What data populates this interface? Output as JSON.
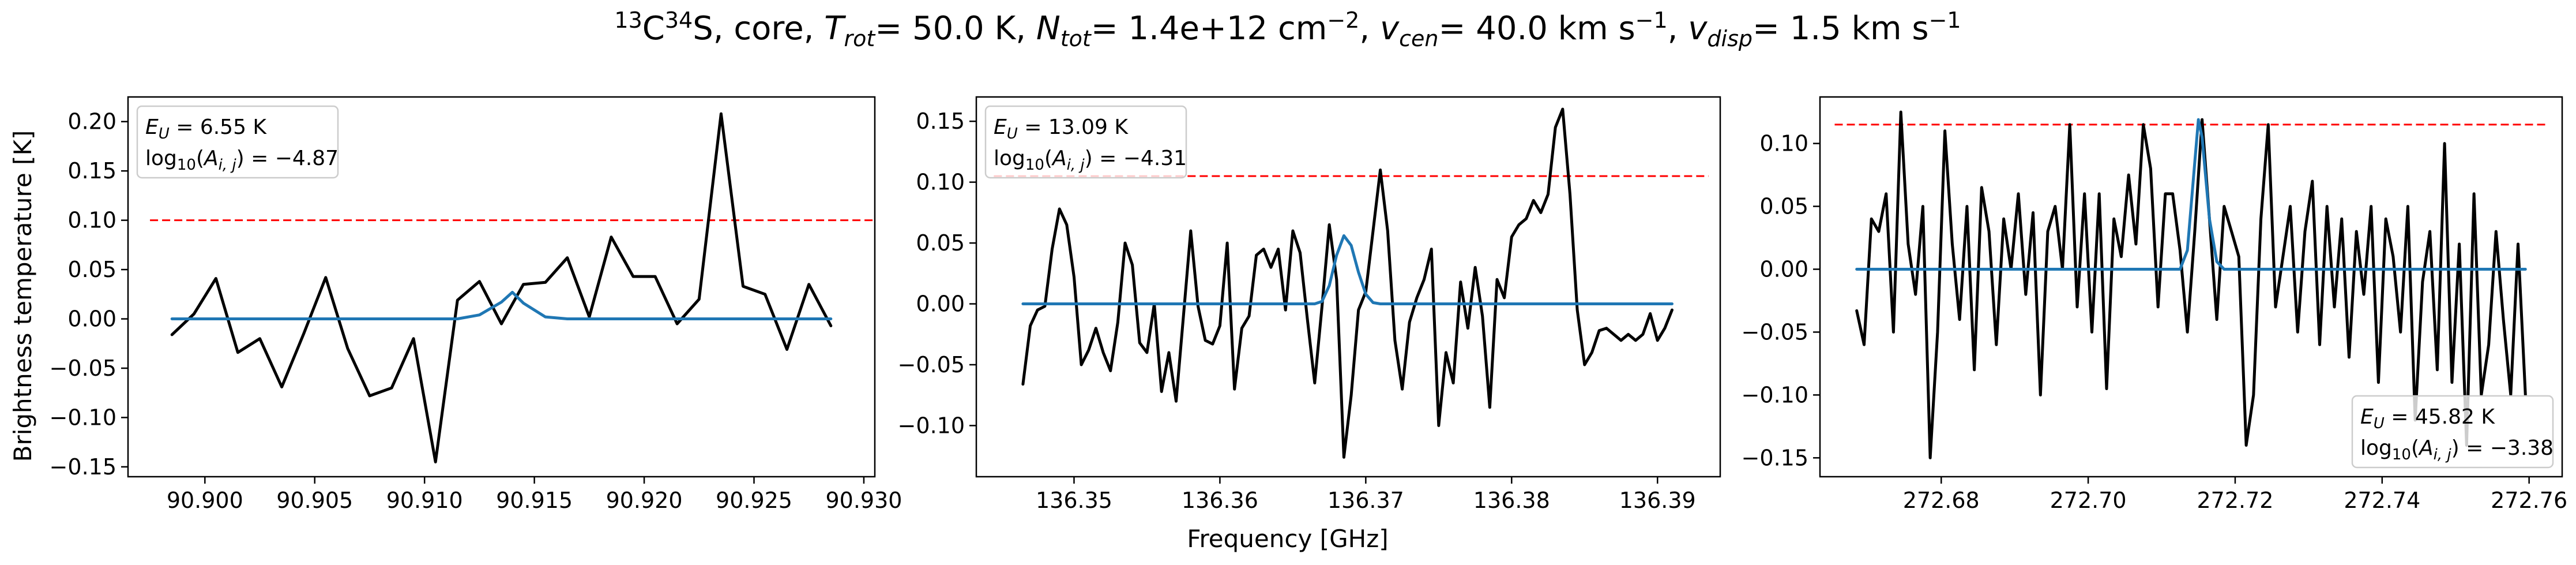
{
  "figure": {
    "title": {
      "iso_mass_1": "13",
      "elem_1": "C",
      "iso_mass_2": "34",
      "elem_2": "S",
      "source": ", core, ",
      "trot_symbol": "T",
      "trot_sub": "rot",
      "trot_value": "= 50.0 K, ",
      "ntot_symbol": "N",
      "ntot_sub": "tot",
      "ntot_value": "= 1.4e+12 cm",
      "ntot_exp": "−2",
      "vcen_symbol": "v",
      "vcen_sub": "cen",
      "vcen_value": "= 40.0 km s",
      "vcen_exp": "−1",
      "vdisp_symbol": "v",
      "vdisp_sub": "disp",
      "vdisp_value": "= 1.5 km s",
      "vdisp_exp": "−1"
    },
    "xlabel": "Frequency [GHz]",
    "ylabel": "Brightness temperature [K]"
  },
  "chart_data": [
    {
      "type": "line",
      "xlim": [
        90.8965,
        90.9305
      ],
      "ylim": [
        -0.16,
        0.225
      ],
      "x_ticks": [
        90.9,
        90.905,
        90.91,
        90.915,
        90.92,
        90.925,
        90.93
      ],
      "x_tick_labels": [
        "90.900",
        "90.905",
        "90.910",
        "90.915",
        "90.920",
        "90.925",
        "90.930"
      ],
      "y_ticks": [
        -0.15,
        -0.1,
        -0.05,
        0.0,
        0.05,
        0.1,
        0.15,
        0.2
      ],
      "y_tick_labels": [
        "−0.15",
        "−0.10",
        "−0.05",
        "0.00",
        "0.05",
        "0.10",
        "0.15",
        "0.20"
      ],
      "annotation": {
        "position": "top-left",
        "eu_symbol": "E",
        "eu_sub": "U",
        "eu_value": " = 6.55 K",
        "log_prefix": "log",
        "log_base": "10",
        "log_open": "(",
        "log_symbol": "A",
        "log_sub": "i, j",
        "log_value": ") = −4.87"
      },
      "threshold": {
        "y": 0.1,
        "x": [
          90.8975,
          90.9305
        ],
        "color": "#ff0000",
        "style": "dashed"
      },
      "series": [
        {
          "color": "#000000",
          "x": [
            90.8985,
            90.8995,
            90.9005,
            90.9015,
            90.9025,
            90.9035,
            90.9045,
            90.9055,
            90.9065,
            90.9075,
            90.9085,
            90.9095,
            90.9105,
            90.9115,
            90.9125,
            90.9135,
            90.9145,
            90.9155,
            90.9165,
            90.9175,
            90.9185,
            90.9195,
            90.9205,
            90.9215,
            90.9225,
            90.9235,
            90.9245,
            90.9255,
            90.9265,
            90.9275,
            90.9285
          ],
          "y": [
            -0.016,
            0.005,
            0.041,
            -0.034,
            -0.02,
            -0.069,
            -0.015,
            0.042,
            -0.03,
            -0.078,
            -0.07,
            -0.02,
            -0.145,
            0.019,
            0.038,
            -0.005,
            0.035,
            0.037,
            0.062,
            0.002,
            0.083,
            0.043,
            0.043,
            -0.005,
            0.02,
            0.208,
            0.033,
            0.025,
            -0.031,
            0.035,
            -0.007
          ]
        },
        {
          "color": "#1f77b4",
          "x": [
            90.8985,
            90.9115,
            90.9125,
            90.9135,
            90.914,
            90.9145,
            90.9155,
            90.9165,
            90.9285
          ],
          "y": [
            0.0,
            0.0,
            0.004,
            0.017,
            0.027,
            0.016,
            0.002,
            0.0,
            0.0
          ]
        }
      ]
    },
    {
      "type": "line",
      "xlim": [
        136.3433,
        136.3943
      ],
      "ylim": [
        -0.142,
        0.17
      ],
      "x_ticks": [
        136.35,
        136.36,
        136.37,
        136.38,
        136.39
      ],
      "x_tick_labels": [
        "136.35",
        "136.36",
        "136.37",
        "136.38",
        "136.39"
      ],
      "y_ticks": [
        -0.1,
        -0.05,
        0.0,
        0.05,
        0.1,
        0.15
      ],
      "y_tick_labels": [
        "−0.10",
        "−0.05",
        "0.00",
        "0.05",
        "0.10",
        "0.15"
      ],
      "annotation": {
        "position": "top-left",
        "eu_symbol": "E",
        "eu_sub": "U",
        "eu_value": " = 13.09 K",
        "log_prefix": "log",
        "log_base": "10",
        "log_open": "(",
        "log_symbol": "A",
        "log_sub": "i, j",
        "log_value": ") = −4.31"
      },
      "threshold": {
        "y": 0.105,
        "x": [
          136.3445,
          136.3935
        ],
        "color": "#ff0000",
        "style": "dashed"
      },
      "series": [
        {
          "color": "#000000",
          "x": [
            136.3465,
            136.347,
            136.3475,
            136.348,
            136.3485,
            136.349,
            136.3495,
            136.35,
            136.3505,
            136.351,
            136.3515,
            136.352,
            136.3525,
            136.353,
            136.3535,
            136.354,
            136.3545,
            136.355,
            136.3555,
            136.356,
            136.3565,
            136.357,
            136.3575,
            136.358,
            136.3585,
            136.359,
            136.3595,
            136.36,
            136.3605,
            136.361,
            136.3615,
            136.362,
            136.3625,
            136.363,
            136.3635,
            136.364,
            136.3645,
            136.365,
            136.3655,
            136.366,
            136.3665,
            136.367,
            136.3675,
            136.368,
            136.3685,
            136.369,
            136.3695,
            136.37,
            136.3705,
            136.371,
            136.3715,
            136.372,
            136.3725,
            136.373,
            136.3735,
            136.374,
            136.3745,
            136.375,
            136.3755,
            136.376,
            136.3765,
            136.377,
            136.3775,
            136.378,
            136.3785,
            136.379,
            136.3795,
            136.38,
            136.3805,
            136.381,
            136.3815,
            136.382,
            136.3825,
            136.383,
            136.3835,
            136.384,
            136.3845,
            136.385,
            136.3855,
            136.386,
            136.3865,
            136.387,
            136.3875,
            136.388,
            136.3885,
            136.389,
            136.3895,
            136.39,
            136.3905,
            136.391
          ],
          "y": [
            -0.066,
            -0.018,
            -0.005,
            -0.002,
            0.045,
            0.078,
            0.065,
            0.022,
            -0.05,
            -0.038,
            -0.02,
            -0.04,
            -0.055,
            -0.015,
            0.05,
            0.032,
            -0.032,
            -0.04,
            0.0,
            -0.072,
            -0.04,
            -0.08,
            -0.01,
            0.06,
            -0.002,
            -0.03,
            -0.033,
            -0.018,
            0.05,
            -0.07,
            -0.02,
            -0.01,
            0.04,
            0.045,
            0.03,
            0.045,
            -0.005,
            0.06,
            0.042,
            -0.013,
            -0.065,
            -0.002,
            0.065,
            0.02,
            -0.126,
            -0.075,
            -0.005,
            0.01,
            0.06,
            0.11,
            0.06,
            -0.03,
            -0.07,
            -0.015,
            0.005,
            0.02,
            0.045,
            -0.1,
            -0.04,
            -0.065,
            0.018,
            -0.02,
            0.03,
            -0.01,
            -0.085,
            0.02,
            0.005,
            0.055,
            0.065,
            0.07,
            0.085,
            0.075,
            0.09,
            0.145,
            0.16,
            0.09,
            -0.005,
            -0.05,
            -0.04,
            -0.022,
            -0.02,
            -0.025,
            -0.03,
            -0.025,
            -0.03,
            -0.025,
            -0.008,
            -0.03,
            -0.02,
            -0.005
          ],
          "comment": ""
        },
        {
          "color": "#1f77b4",
          "x": [
            136.3465,
            136.3665,
            136.367,
            136.3675,
            136.368,
            136.3685,
            136.369,
            136.3695,
            136.37,
            136.3705,
            136.371,
            136.391
          ],
          "y": [
            0.0,
            0.0,
            0.002,
            0.015,
            0.04,
            0.056,
            0.048,
            0.026,
            0.008,
            0.001,
            0.0,
            0.0
          ]
        }
      ]
    },
    {
      "type": "line",
      "xlim": [
        272.6635,
        272.7645
      ],
      "ylim": [
        -0.165,
        0.137
      ],
      "x_ticks": [
        272.68,
        272.7,
        272.72,
        272.74,
        272.76
      ],
      "x_tick_labels": [
        "272.68",
        "272.70",
        "272.72",
        "272.74",
        "272.76"
      ],
      "y_ticks": [
        -0.15,
        -0.1,
        -0.05,
        0.0,
        0.05,
        0.1
      ],
      "y_tick_labels": [
        "−0.15",
        "−0.10",
        "−0.05",
        "0.00",
        "0.05",
        "0.10"
      ],
      "annotation": {
        "position": "bottom-right",
        "eu_symbol": "E",
        "eu_sub": "U",
        "eu_value": " = 45.82 K",
        "log_prefix": "log",
        "log_base": "10",
        "log_open": "(",
        "log_symbol": "A",
        "log_sub": "i, j",
        "log_value": ") = −3.38"
      },
      "threshold": {
        "y": 0.115,
        "x": [
          272.6655,
          272.7625
        ],
        "color": "#ff0000",
        "style": "dashed"
      },
      "series": [
        {
          "color": "#000000",
          "x": [
            272.6685,
            272.6695,
            272.6705,
            272.6715,
            272.6725,
            272.6735,
            272.6745,
            272.6755,
            272.6765,
            272.6775,
            272.6785,
            272.6795,
            272.6805,
            272.6815,
            272.6825,
            272.6835,
            272.6845,
            272.6855,
            272.6865,
            272.6875,
            272.6885,
            272.6895,
            272.6905,
            272.6915,
            272.6925,
            272.6935,
            272.6945,
            272.6955,
            272.6965,
            272.6975,
            272.6985,
            272.6995,
            272.7005,
            272.7015,
            272.7025,
            272.7035,
            272.7045,
            272.7055,
            272.7065,
            272.7075,
            272.7085,
            272.7095,
            272.7105,
            272.7115,
            272.7125,
            272.7135,
            272.7145,
            272.7155,
            272.7165,
            272.7175,
            272.7185,
            272.7195,
            272.7205,
            272.7215,
            272.7225,
            272.7235,
            272.7245,
            272.7255,
            272.7265,
            272.7275,
            272.7285,
            272.7295,
            272.7305,
            272.7315,
            272.7325,
            272.7335,
            272.7345,
            272.7355,
            272.7365,
            272.7375,
            272.7385,
            272.7395,
            272.7405,
            272.7415,
            272.7425,
            272.7435,
            272.7445,
            272.7455,
            272.7465,
            272.7475,
            272.7485,
            272.7495,
            272.7505,
            272.7515,
            272.7525,
            272.7535,
            272.7545,
            272.7555,
            272.7565,
            272.7575,
            272.7585,
            272.7595
          ],
          "y": [
            -0.033,
            -0.06,
            0.04,
            0.03,
            0.06,
            -0.05,
            0.125,
            0.02,
            -0.02,
            0.05,
            -0.15,
            -0.05,
            0.11,
            0.02,
            -0.04,
            0.05,
            -0.08,
            0.065,
            0.03,
            -0.06,
            0.04,
            0.0,
            0.06,
            -0.02,
            0.045,
            -0.1,
            0.03,
            0.05,
            0.0,
            0.115,
            -0.03,
            0.06,
            -0.05,
            0.06,
            -0.095,
            0.04,
            0.01,
            0.075,
            0.02,
            0.115,
            0.08,
            -0.03,
            0.06,
            0.06,
            0.015,
            -0.05,
            0.03,
            0.119,
            0.04,
            -0.04,
            0.05,
            0.03,
            0.01,
            -0.14,
            -0.1,
            0.04,
            0.115,
            -0.03,
            0.01,
            0.05,
            -0.05,
            0.03,
            0.07,
            -0.06,
            0.05,
            -0.03,
            0.04,
            -0.07,
            0.03,
            -0.02,
            0.05,
            -0.09,
            0.04,
            0.01,
            -0.05,
            0.05,
            -0.12,
            -0.01,
            0.03,
            -0.08,
            0.1,
            -0.09,
            0.02,
            -0.14,
            0.06,
            -0.1,
            -0.06,
            0.03,
            -0.04,
            -0.1,
            0.02,
            -0.1
          ],
          "comment": ""
        },
        {
          "color": "#1f77b4",
          "x": [
            272.6685,
            272.7125,
            272.7135,
            272.7145,
            272.715,
            272.7155,
            272.7165,
            272.7175,
            272.7185,
            272.7595
          ],
          "y": [
            0.0,
            0.0,
            0.015,
            0.085,
            0.119,
            0.105,
            0.04,
            0.006,
            0.0,
            0.0
          ]
        }
      ]
    }
  ]
}
